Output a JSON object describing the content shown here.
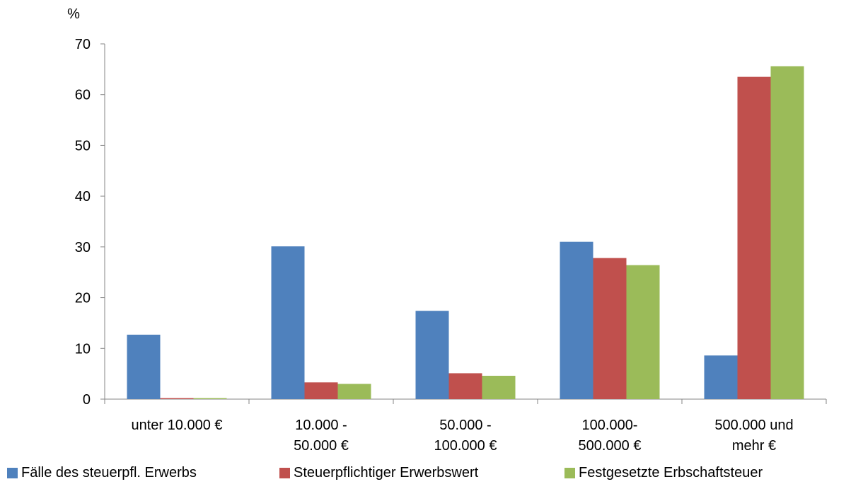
{
  "chart_data": {
    "type": "bar",
    "ylabel": "%",
    "ylim": [
      0,
      70
    ],
    "yticks": [
      "0",
      "10",
      "20",
      "30",
      "40",
      "50",
      "60",
      "70"
    ],
    "categories": [
      [
        "unter 10.000 €"
      ],
      [
        "10.000 -",
        "50.000 €"
      ],
      [
        "50.000 -",
        "100.000 €"
      ],
      [
        "100.000-",
        "500.000 €"
      ],
      [
        "500.000 und",
        "mehr €"
      ]
    ],
    "series": [
      {
        "name": "Fälle des steuerpfl. Erwerbs",
        "color": "#4F81BD",
        "values": [
          12.7,
          30.1,
          17.4,
          31.0,
          8.6
        ]
      },
      {
        "name": "Steuerpflichtiger Erwerbswert",
        "color": "#C0504D",
        "values": [
          0.2,
          3.3,
          5.1,
          27.8,
          63.5
        ]
      },
      {
        "name": "Festgesetzte Erbschaftsteuer",
        "color": "#9BBB59",
        "values": [
          0.2,
          3.0,
          4.6,
          26.4,
          65.6
        ]
      }
    ],
    "grid": false,
    "legend": "bottom"
  },
  "legend": {
    "items": [
      {
        "label": "Fälle des steuerpfl. Erwerbs",
        "color": "#4F81BD"
      },
      {
        "label": "Steuerpflichtiger Erwerbswert",
        "color": "#C0504D"
      },
      {
        "label": "Festgesetzte Erbschaftsteuer",
        "color": "#9BBB59"
      }
    ]
  }
}
